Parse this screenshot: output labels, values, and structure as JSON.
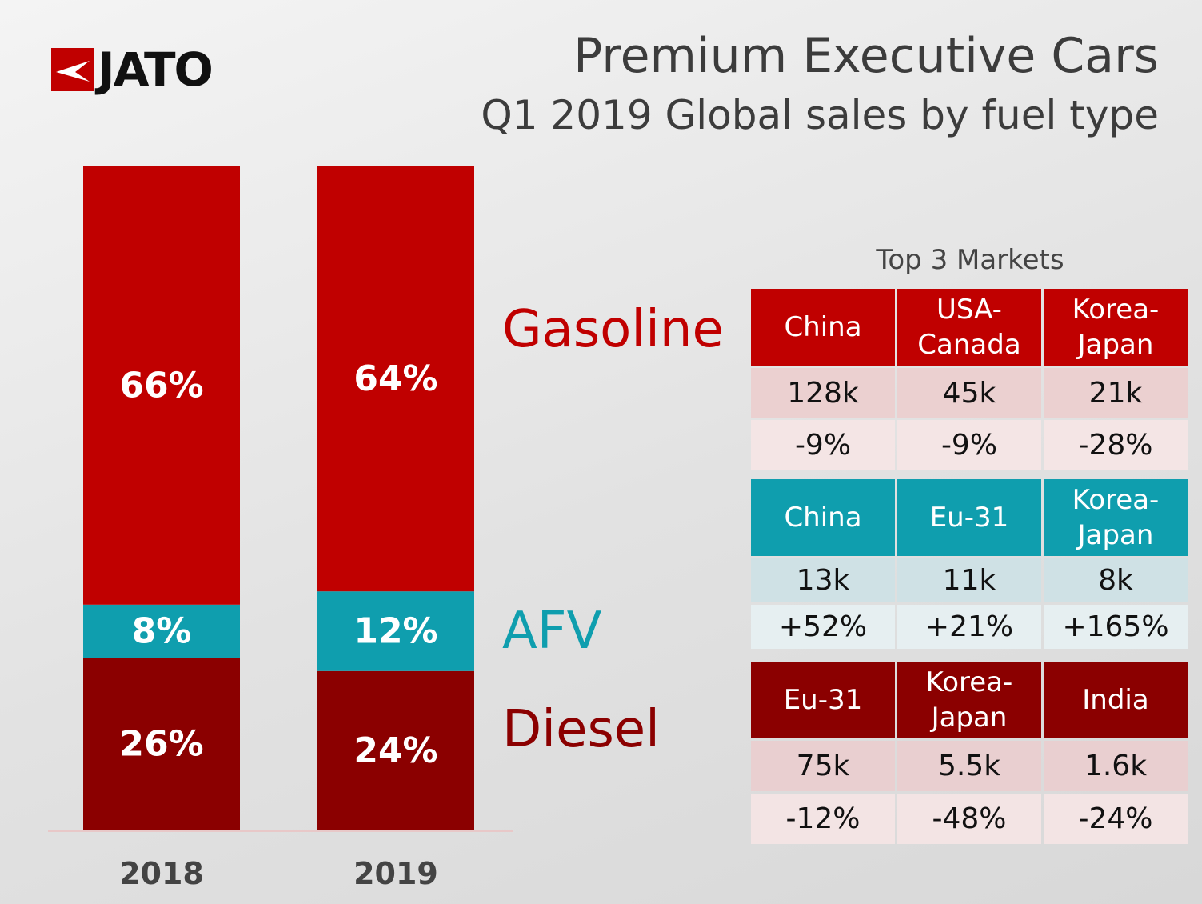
{
  "logo": {
    "text": "JATO"
  },
  "title": "Premium Executive Cars",
  "subtitle": "Q1 2019 Global sales by fuel type",
  "colors": {
    "gasoline": "#c00000",
    "afv": "#0f9eae",
    "diesel": "#8b0000"
  },
  "chart_data": {
    "type": "bar",
    "stacked": true,
    "categories": [
      "2018",
      "2019"
    ],
    "series": [
      {
        "name": "Diesel",
        "values": [
          26,
          24
        ],
        "labels": [
          "26%",
          "24%"
        ],
        "color": "#8b0000"
      },
      {
        "name": "AFV",
        "values": [
          8,
          12
        ],
        "labels": [
          "8%",
          "12%"
        ],
        "color": "#0f9eae"
      },
      {
        "name": "Gasoline",
        "values": [
          66,
          64
        ],
        "labels": [
          "66%",
          "64%"
        ],
        "color": "#c00000"
      }
    ],
    "ylim": [
      0,
      100
    ],
    "legend": "right",
    "grid": false
  },
  "markets": {
    "title": "Top 3 Markets",
    "tables": [
      {
        "fuel": "Gasoline",
        "headers": [
          "China",
          "USA-\nCanada",
          "Korea-\nJapan"
        ],
        "volumes": [
          "128k",
          "45k",
          "21k"
        ],
        "changes": [
          "-9%",
          "-9%",
          "-28%"
        ]
      },
      {
        "fuel": "AFV",
        "headers": [
          "China",
          "Eu-31",
          "Korea-\nJapan"
        ],
        "volumes": [
          "13k",
          "11k",
          "8k"
        ],
        "changes": [
          "+52%",
          "+21%",
          "+165%"
        ]
      },
      {
        "fuel": "Diesel",
        "headers": [
          "Eu-31",
          "Korea-\nJapan",
          "India"
        ],
        "volumes": [
          "75k",
          "5.5k",
          "1.6k"
        ],
        "changes": [
          "-12%",
          "-48%",
          "-24%"
        ]
      }
    ]
  }
}
